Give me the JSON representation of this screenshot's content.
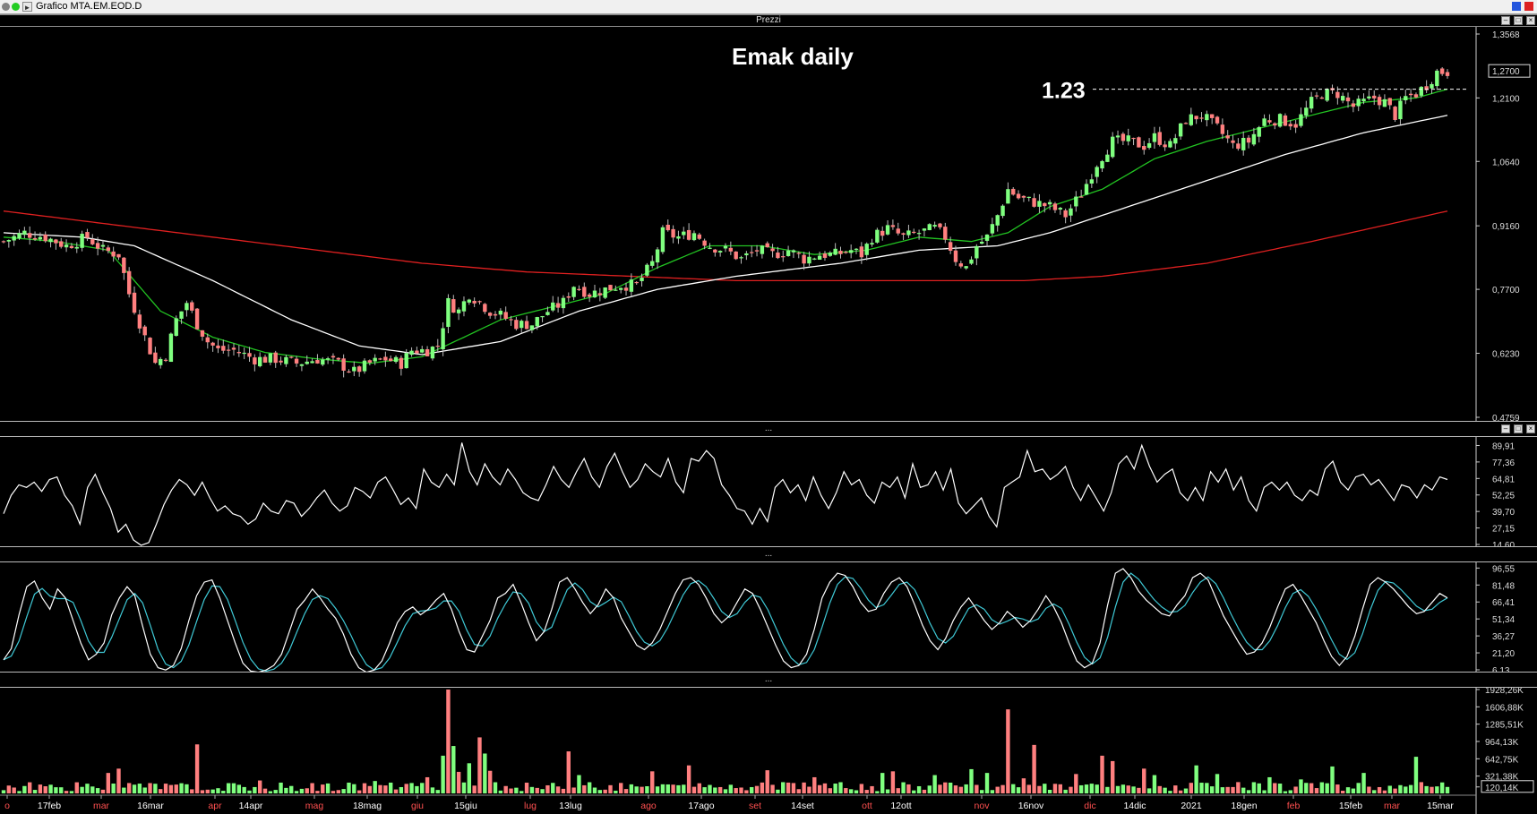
{
  "window": {
    "title": "Grafico MTA.EM.EOD.D",
    "panel_caption": "Prezzi",
    "separator_glyph": "..."
  },
  "colors": {
    "up": "#7fff7f",
    "down": "#ff7f7f",
    "ma_short": "#22c322",
    "ma_mid": "#ffffff",
    "ma_long": "#e02020",
    "rsi": "#ffffff",
    "stoch_k": "#ffffff",
    "stoch_d": "#3fc9d6"
  },
  "chart_data": [
    {
      "type": "candlestick",
      "title": "Emak daily",
      "annotation": {
        "label": "1.23",
        "value": 1.23,
        "style": "dashed horizontal line"
      },
      "y_ticks": [
        "1,3568",
        "1,2100",
        "1,0640",
        "0,9160",
        "0,7700",
        "0,6230",
        "0,4759"
      ],
      "y_tick_values": [
        1.3568,
        1.21,
        1.064,
        0.916,
        0.77,
        0.623,
        0.4759
      ],
      "ylim": [
        0.4759,
        1.3568
      ],
      "last_price_label": "1,2700",
      "last_price": 1.27,
      "x_labels": [
        "o",
        "17feb",
        "mar",
        "16mar",
        "apr",
        "14apr",
        "mag",
        "18mag",
        "giu",
        "15giu",
        "lug",
        "13lug",
        "ago",
        "17ago",
        "set",
        "14set",
        "ott",
        "12ott",
        "nov",
        "16nov",
        "dic",
        "14dic",
        "2021",
        "18gen",
        "feb",
        "15feb",
        "mar",
        "15mar"
      ],
      "x_label_colors": [
        "red",
        "white",
        "red",
        "white",
        "red",
        "white",
        "red",
        "white",
        "red",
        "white",
        "red",
        "white",
        "red",
        "white",
        "red",
        "white",
        "red",
        "white",
        "red",
        "white",
        "red",
        "white",
        "white",
        "white",
        "red",
        "white",
        "red",
        "white"
      ],
      "price_anchors": [
        [
          0,
          0.88
        ],
        [
          4,
          0.9
        ],
        [
          8,
          0.89
        ],
        [
          12,
          0.87
        ],
        [
          16,
          0.89
        ],
        [
          19,
          0.86
        ],
        [
          22,
          0.85
        ],
        [
          24,
          0.76
        ],
        [
          27,
          0.66
        ],
        [
          29,
          0.6
        ],
        [
          31,
          0.62
        ],
        [
          33,
          0.7
        ],
        [
          35,
          0.74
        ],
        [
          37,
          0.69
        ],
        [
          39,
          0.65
        ],
        [
          41,
          0.63
        ],
        [
          44,
          0.63
        ],
        [
          48,
          0.61
        ],
        [
          52,
          0.61
        ],
        [
          56,
          0.6
        ],
        [
          60,
          0.61
        ],
        [
          64,
          0.6
        ],
        [
          67,
          0.58
        ],
        [
          70,
          0.6
        ],
        [
          73,
          0.61
        ],
        [
          76,
          0.6
        ],
        [
          78,
          0.63
        ],
        [
          81,
          0.63
        ],
        [
          83,
          0.64
        ],
        [
          85,
          0.74
        ],
        [
          87,
          0.72
        ],
        [
          89,
          0.76
        ],
        [
          91,
          0.74
        ],
        [
          93,
          0.72
        ],
        [
          95,
          0.71
        ],
        [
          98,
          0.69
        ],
        [
          101,
          0.69
        ],
        [
          104,
          0.72
        ],
        [
          107,
          0.74
        ],
        [
          109,
          0.78
        ],
        [
          112,
          0.76
        ],
        [
          115,
          0.77
        ],
        [
          118,
          0.78
        ],
        [
          121,
          0.78
        ],
        [
          124,
          0.83
        ],
        [
          126,
          0.9
        ],
        [
          129,
          0.89
        ],
        [
          132,
          0.9
        ],
        [
          135,
          0.87
        ],
        [
          138,
          0.86
        ],
        [
          141,
          0.84
        ],
        [
          144,
          0.86
        ],
        [
          147,
          0.85
        ],
        [
          150,
          0.86
        ],
        [
          153,
          0.84
        ],
        [
          156,
          0.85
        ],
        [
          159,
          0.85
        ],
        [
          162,
          0.86
        ],
        [
          164,
          0.85
        ],
        [
          166,
          0.89
        ],
        [
          169,
          0.91
        ],
        [
          172,
          0.89
        ],
        [
          175,
          0.9
        ],
        [
          178,
          0.91
        ],
        [
          180,
          0.89
        ],
        [
          182,
          0.84
        ],
        [
          184,
          0.82
        ],
        [
          186,
          0.87
        ],
        [
          188,
          0.89
        ],
        [
          190,
          0.94
        ],
        [
          192,
          1.0
        ],
        [
          194,
          0.98
        ],
        [
          197,
          0.97
        ],
        [
          200,
          0.96
        ],
        [
          203,
          0.94
        ],
        [
          206,
          0.99
        ],
        [
          209,
          1.06
        ],
        [
          212,
          1.11
        ],
        [
          215,
          1.11
        ],
        [
          218,
          1.1
        ],
        [
          220,
          1.12
        ],
        [
          223,
          1.1
        ],
        [
          226,
          1.16
        ],
        [
          229,
          1.17
        ],
        [
          232,
          1.14
        ],
        [
          235,
          1.1
        ],
        [
          238,
          1.11
        ],
        [
          241,
          1.16
        ],
        [
          244,
          1.16
        ],
        [
          247,
          1.15
        ],
        [
          250,
          1.2
        ],
        [
          252,
          1.22
        ],
        [
          255,
          1.22
        ],
        [
          258,
          1.19
        ],
        [
          260,
          1.2
        ],
        [
          262,
          1.21
        ],
        [
          264,
          1.2
        ],
        [
          266,
          1.17
        ],
        [
          268,
          1.21
        ],
        [
          270,
          1.22
        ],
        [
          272,
          1.24
        ],
        [
          274,
          1.27
        ],
        [
          276,
          1.27
        ]
      ],
      "ma_short_anchors": [
        [
          0,
          0.89
        ],
        [
          10,
          0.88
        ],
        [
          20,
          0.86
        ],
        [
          30,
          0.72
        ],
        [
          40,
          0.66
        ],
        [
          50,
          0.625
        ],
        [
          60,
          0.61
        ],
        [
          70,
          0.6
        ],
        [
          80,
          0.615
        ],
        [
          88,
          0.66
        ],
        [
          95,
          0.7
        ],
        [
          105,
          0.73
        ],
        [
          115,
          0.76
        ],
        [
          125,
          0.82
        ],
        [
          135,
          0.87
        ],
        [
          145,
          0.87
        ],
        [
          155,
          0.85
        ],
        [
          165,
          0.86
        ],
        [
          175,
          0.89
        ],
        [
          185,
          0.88
        ],
        [
          192,
          0.9
        ],
        [
          200,
          0.96
        ],
        [
          210,
          1.0
        ],
        [
          220,
          1.07
        ],
        [
          230,
          1.11
        ],
        [
          240,
          1.14
        ],
        [
          250,
          1.17
        ],
        [
          260,
          1.2
        ],
        [
          270,
          1.21
        ],
        [
          276,
          1.23
        ]
      ],
      "ma_mid_anchors": [
        [
          0,
          0.9
        ],
        [
          15,
          0.89
        ],
        [
          25,
          0.87
        ],
        [
          40,
          0.79
        ],
        [
          55,
          0.7
        ],
        [
          68,
          0.64
        ],
        [
          80,
          0.62
        ],
        [
          95,
          0.65
        ],
        [
          110,
          0.72
        ],
        [
          125,
          0.77
        ],
        [
          140,
          0.8
        ],
        [
          160,
          0.83
        ],
        [
          175,
          0.86
        ],
        [
          190,
          0.87
        ],
        [
          200,
          0.9
        ],
        [
          215,
          0.96
        ],
        [
          230,
          1.02
        ],
        [
          245,
          1.08
        ],
        [
          260,
          1.13
        ],
        [
          276,
          1.17
        ]
      ],
      "ma_long_anchors": [
        [
          0,
          0.95
        ],
        [
          20,
          0.92
        ],
        [
          40,
          0.89
        ],
        [
          60,
          0.86
        ],
        [
          80,
          0.83
        ],
        [
          100,
          0.81
        ],
        [
          120,
          0.8
        ],
        [
          140,
          0.79
        ],
        [
          160,
          0.79
        ],
        [
          180,
          0.79
        ],
        [
          195,
          0.79
        ],
        [
          210,
          0.8
        ],
        [
          230,
          0.83
        ],
        [
          250,
          0.88
        ],
        [
          265,
          0.92
        ],
        [
          276,
          0.95
        ]
      ]
    },
    {
      "type": "line",
      "name": "oscillator",
      "y_ticks": [
        "89,91",
        "77,36",
        "64,81",
        "52,25",
        "39,70",
        "27,15",
        "14,60"
      ],
      "y_tick_values": [
        89.91,
        77.36,
        64.81,
        52.25,
        39.7,
        27.15,
        14.6
      ],
      "ylim": [
        14.6,
        95
      ],
      "values": [
        38,
        52,
        60,
        58,
        62,
        55,
        64,
        66,
        52,
        44,
        30,
        58,
        68,
        54,
        42,
        24,
        30,
        18,
        14,
        16,
        30,
        45,
        56,
        64,
        60,
        52,
        62,
        50,
        40,
        44,
        38,
        36,
        30,
        34,
        46,
        40,
        38,
        48,
        46,
        36,
        42,
        50,
        56,
        46,
        40,
        44,
        58,
        55,
        50,
        62,
        66,
        56,
        45,
        50,
        42,
        72,
        62,
        58,
        68,
        60,
        92,
        70,
        60,
        76,
        66,
        60,
        72,
        64,
        54,
        50,
        48,
        60,
        74,
        64,
        58,
        70,
        80,
        66,
        58,
        74,
        84,
        70,
        58,
        64,
        76,
        70,
        66,
        80,
        62,
        54,
        80,
        78,
        86,
        80,
        60,
        52,
        42,
        40,
        30,
        42,
        32,
        58,
        64,
        54,
        60,
        48,
        66,
        52,
        42,
        54,
        70,
        60,
        64,
        52,
        46,
        62,
        58,
        66,
        50,
        76,
        58,
        60,
        70,
        56,
        72,
        46,
        38,
        44,
        50,
        36,
        28,
        58,
        62,
        66,
        86,
        70,
        72,
        64,
        68,
        74,
        58,
        48,
        60,
        50,
        40,
        54,
        76,
        82,
        72,
        90,
        74,
        62,
        68,
        72,
        54,
        48,
        58,
        48,
        70,
        62,
        72,
        56,
        66,
        48,
        40,
        58,
        62,
        56,
        62,
        52,
        48,
        56,
        52,
        72,
        78,
        62,
        56,
        66,
        68,
        60,
        64,
        56,
        48,
        60,
        58,
        50,
        60,
        56,
        66,
        64
      ]
    },
    {
      "type": "line",
      "name": "stochastic",
      "y_ticks": [
        "96,55",
        "81,48",
        "66,41",
        "51,34",
        "36,27",
        "21,20",
        "6,13"
      ],
      "y_tick_values": [
        96.55,
        81.48,
        66.41,
        51.34,
        36.27,
        21.2,
        6.13
      ],
      "ylim": [
        6.13,
        100
      ],
      "series_k": [
        15,
        25,
        55,
        80,
        85,
        70,
        60,
        78,
        70,
        50,
        30,
        15,
        20,
        30,
        55,
        70,
        80,
        72,
        45,
        20,
        8,
        6,
        10,
        25,
        50,
        72,
        84,
        86,
        70,
        50,
        30,
        12,
        5,
        4,
        6,
        10,
        20,
        40,
        60,
        68,
        78,
        70,
        60,
        52,
        38,
        20,
        8,
        4,
        6,
        14,
        30,
        48,
        58,
        62,
        55,
        60,
        68,
        74,
        60,
        40,
        24,
        22,
        36,
        50,
        70,
        74,
        82,
        66,
        48,
        32,
        40,
        60,
        84,
        88,
        78,
        66,
        56,
        64,
        78,
        70,
        52,
        40,
        28,
        24,
        30,
        42,
        58,
        74,
        86,
        88,
        82,
        70,
        56,
        48,
        54,
        66,
        78,
        74,
        60,
        44,
        28,
        14,
        8,
        10,
        20,
        42,
        70,
        84,
        92,
        90,
        80,
        66,
        58,
        60,
        74,
        84,
        88,
        80,
        64,
        46,
        32,
        24,
        34,
        50,
        62,
        70,
        60,
        50,
        42,
        48,
        58,
        52,
        44,
        50,
        60,
        72,
        62,
        48,
        30,
        14,
        8,
        12,
        30,
        64,
        92,
        96,
        88,
        76,
        68,
        62,
        56,
        54,
        64,
        72,
        88,
        92,
        86,
        70,
        54,
        42,
        30,
        20,
        22,
        30,
        44,
        62,
        78,
        82,
        72,
        60,
        48,
        32,
        18,
        10,
        18,
        36,
        60,
        82,
        88,
        84,
        78,
        70,
        62,
        56,
        58,
        66,
        74,
        70
      ]
    },
    {
      "type": "bar",
      "name": "volume",
      "y_ticks": [
        "1928,26K",
        "1606,88K",
        "1285,51K",
        "964,13K",
        "642,75K",
        "321,38K",
        "120,14K"
      ],
      "y_tick_values": [
        1928.26,
        1606.88,
        1285.51,
        964.13,
        642.75,
        321.38,
        120.14
      ],
      "ylim": [
        0,
        1928.26
      ],
      "last_value_label": "120,14K",
      "spikes": [
        [
          0,
          60
        ],
        [
          20,
          380
        ],
        [
          22,
          460
        ],
        [
          37,
          910
        ],
        [
          49,
          240
        ],
        [
          66,
          200
        ],
        [
          71,
          230
        ],
        [
          74,
          200
        ],
        [
          81,
          300
        ],
        [
          84,
          700
        ],
        [
          85,
          1928
        ],
        [
          86,
          880
        ],
        [
          87,
          400
        ],
        [
          89,
          560
        ],
        [
          91,
          1040
        ],
        [
          92,
          740
        ],
        [
          93,
          420
        ],
        [
          108,
          780
        ],
        [
          110,
          340
        ],
        [
          124,
          410
        ],
        [
          131,
          520
        ],
        [
          146,
          430
        ],
        [
          155,
          300
        ],
        [
          168,
          380
        ],
        [
          170,
          410
        ],
        [
          178,
          340
        ],
        [
          185,
          450
        ],
        [
          188,
          380
        ],
        [
          192,
          1560
        ],
        [
          195,
          280
        ],
        [
          197,
          900
        ],
        [
          205,
          360
        ],
        [
          210,
          700
        ],
        [
          212,
          600
        ],
        [
          218,
          460
        ],
        [
          220,
          340
        ],
        [
          228,
          520
        ],
        [
          232,
          360
        ],
        [
          242,
          300
        ],
        [
          248,
          260
        ],
        [
          254,
          500
        ],
        [
          260,
          380
        ],
        [
          270,
          680
        ],
        [
          274,
          130
        ],
        [
          276,
          120
        ]
      ]
    }
  ]
}
